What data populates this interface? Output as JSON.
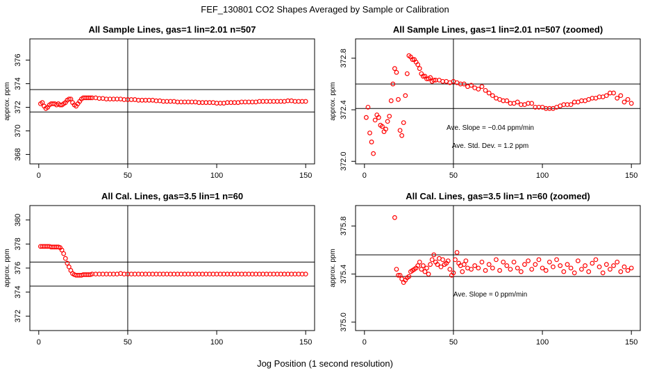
{
  "page": {
    "title": "FEF_130801  CO2 Shapes Averaged by Sample or Calibration",
    "xlabel": "Jog Position (1 second resolution)"
  },
  "colors": {
    "points": "#ff0000",
    "axes": "#000000",
    "background": "#ffffff"
  },
  "chart_data": [
    {
      "type": "scatter",
      "title": "All Sample Lines, gas=1 lin=2.01 n=507",
      "ylabel": "approx. ppm",
      "xlim": [
        -5,
        155
      ],
      "ylim": [
        367.2,
        377.8
      ],
      "xticks": [
        0,
        50,
        100,
        150
      ],
      "yticks": [
        368,
        370,
        372,
        374,
        376
      ],
      "vline": 50,
      "hlines": [
        373.5,
        371.6
      ],
      "series": [
        {
          "x": [
            1,
            2,
            3,
            4,
            5,
            6,
            7,
            8,
            9,
            10,
            11,
            12,
            13,
            14,
            15,
            16,
            17,
            18,
            19,
            20,
            21,
            22,
            23,
            24,
            25,
            26,
            27,
            28,
            29,
            30,
            32,
            34,
            36,
            38,
            40,
            42,
            44,
            46,
            48,
            50,
            52,
            54,
            56,
            58,
            60,
            62,
            64,
            66,
            68,
            70,
            72,
            74,
            76,
            78,
            80,
            82,
            84,
            86,
            88,
            90,
            92,
            94,
            96,
            98,
            100,
            102,
            104,
            106,
            108,
            110,
            112,
            114,
            116,
            118,
            120,
            122,
            124,
            126,
            128,
            130,
            132,
            134,
            136,
            138,
            140,
            142,
            144,
            146,
            148,
            150
          ],
          "y": [
            372.3,
            372.4,
            372.1,
            371.9,
            372.0,
            372.2,
            372.3,
            372.3,
            372.3,
            372.2,
            372.3,
            372.2,
            372.2,
            372.3,
            372.4,
            372.6,
            372.7,
            372.7,
            372.4,
            372.2,
            372.1,
            372.3,
            372.5,
            372.7,
            372.8,
            372.8,
            372.8,
            372.8,
            372.8,
            372.8,
            372.8,
            372.75,
            372.75,
            372.7,
            372.7,
            372.7,
            372.7,
            372.7,
            372.65,
            372.65,
            372.65,
            372.65,
            372.6,
            372.6,
            372.6,
            372.6,
            372.6,
            372.55,
            372.55,
            372.5,
            372.5,
            372.5,
            372.5,
            372.45,
            372.45,
            372.45,
            372.45,
            372.45,
            372.45,
            372.4,
            372.4,
            372.4,
            372.4,
            372.4,
            372.35,
            372.35,
            372.35,
            372.4,
            372.4,
            372.4,
            372.4,
            372.45,
            372.45,
            372.45,
            372.45,
            372.45,
            372.5,
            372.5,
            372.5,
            372.5,
            372.5,
            372.5,
            372.5,
            372.5,
            372.55,
            372.55,
            372.5,
            372.5,
            372.5,
            372.5
          ]
        }
      ]
    },
    {
      "type": "scatter",
      "title": "All Sample Lines, gas=1 lin=2.01 n=507 (zoomed)",
      "ylabel": "approx. ppm",
      "xlim": [
        -5,
        155
      ],
      "ylim": [
        371.98,
        372.95
      ],
      "xticks": [
        0,
        50,
        100,
        150
      ],
      "yticks": [
        372.0,
        372.4,
        372.8
      ],
      "vline": 50,
      "hlines": [
        372.6,
        372.41
      ],
      "annotations": [
        "Ave. Slope =  −0.04  ppm/min",
        "Ave. Std. Dev. =  1.2  ppm"
      ],
      "series": [
        {
          "x": [
            1,
            2,
            3,
            4,
            5,
            6,
            7,
            8,
            9,
            10,
            11,
            12,
            13,
            14,
            15,
            16,
            17,
            18,
            19,
            20,
            21,
            22,
            23,
            24,
            25,
            26,
            27,
            28,
            29,
            30,
            31,
            32,
            33,
            34,
            35,
            36,
            37,
            38,
            39,
            40,
            42,
            44,
            46,
            48,
            50,
            52,
            54,
            56,
            58,
            60,
            62,
            64,
            66,
            68,
            70,
            72,
            74,
            76,
            78,
            80,
            82,
            84,
            86,
            88,
            90,
            92,
            94,
            96,
            98,
            100,
            102,
            104,
            106,
            108,
            110,
            112,
            114,
            116,
            118,
            120,
            122,
            124,
            126,
            128,
            130,
            132,
            134,
            136,
            138,
            140,
            142,
            144,
            146,
            148,
            150
          ],
          "y": [
            372.34,
            372.42,
            372.22,
            372.15,
            372.06,
            372.32,
            372.36,
            372.34,
            372.28,
            372.27,
            372.23,
            372.25,
            372.31,
            372.35,
            372.47,
            372.6,
            372.72,
            372.69,
            372.48,
            372.24,
            372.2,
            372.3,
            372.51,
            372.68,
            372.82,
            372.81,
            372.79,
            372.79,
            372.77,
            372.75,
            372.72,
            372.68,
            372.66,
            372.66,
            372.64,
            372.64,
            372.65,
            372.62,
            372.63,
            372.63,
            372.63,
            372.62,
            372.62,
            372.61,
            372.62,
            372.61,
            372.6,
            372.6,
            372.58,
            372.59,
            372.57,
            372.56,
            372.58,
            372.55,
            372.53,
            372.51,
            372.49,
            372.48,
            372.47,
            372.47,
            372.45,
            372.45,
            372.46,
            372.44,
            372.44,
            372.45,
            372.45,
            372.42,
            372.42,
            372.42,
            372.41,
            372.41,
            372.41,
            372.42,
            372.43,
            372.44,
            372.44,
            372.44,
            372.46,
            372.46,
            372.47,
            372.47,
            372.48,
            372.49,
            372.49,
            372.5,
            372.5,
            372.51,
            372.53,
            372.53,
            372.49,
            372.51,
            372.46,
            372.48,
            372.45
          ]
        }
      ]
    },
    {
      "type": "scatter",
      "title": "All Cal. Lines, gas=3.5 lin=1 n=60",
      "ylabel": "approx. ppm",
      "xlim": [
        -5,
        155
      ],
      "ylim": [
        370.8,
        381.2
      ],
      "xticks": [
        0,
        50,
        100,
        150
      ],
      "yticks": [
        372,
        374,
        376,
        378,
        380
      ],
      "vline": 50,
      "hlines": [
        376.5,
        374.5
      ],
      "series": [
        {
          "x": [
            1,
            2,
            3,
            4,
            5,
            6,
            7,
            8,
            9,
            10,
            11,
            12,
            13,
            14,
            15,
            16,
            17,
            18,
            19,
            20,
            21,
            22,
            23,
            24,
            25,
            26,
            27,
            28,
            29,
            30,
            32,
            34,
            36,
            38,
            40,
            42,
            44,
            46,
            48,
            50,
            52,
            54,
            56,
            58,
            60,
            62,
            64,
            66,
            68,
            70,
            72,
            74,
            76,
            78,
            80,
            82,
            84,
            86,
            88,
            90,
            92,
            94,
            96,
            98,
            100,
            102,
            104,
            106,
            108,
            110,
            112,
            114,
            116,
            118,
            120,
            122,
            124,
            126,
            128,
            130,
            132,
            134,
            136,
            138,
            140,
            142,
            144,
            146,
            148,
            150
          ],
          "y": [
            377.8,
            377.8,
            377.8,
            377.8,
            377.8,
            377.8,
            377.75,
            377.75,
            377.75,
            377.75,
            377.75,
            377.7,
            377.5,
            377.2,
            376.8,
            376.4,
            376.1,
            375.8,
            375.55,
            375.45,
            375.4,
            375.4,
            375.4,
            375.4,
            375.45,
            375.45,
            375.45,
            375.45,
            375.45,
            375.5,
            375.5,
            375.5,
            375.5,
            375.5,
            375.5,
            375.5,
            375.5,
            375.55,
            375.5,
            375.5,
            375.5,
            375.5,
            375.5,
            375.5,
            375.5,
            375.5,
            375.5,
            375.5,
            375.5,
            375.5,
            375.5,
            375.5,
            375.5,
            375.5,
            375.5,
            375.5,
            375.5,
            375.5,
            375.5,
            375.5,
            375.5,
            375.5,
            375.5,
            375.5,
            375.5,
            375.5,
            375.5,
            375.5,
            375.5,
            375.5,
            375.5,
            375.5,
            375.5,
            375.5,
            375.5,
            375.5,
            375.5,
            375.5,
            375.5,
            375.5,
            375.5,
            375.5,
            375.5,
            375.5,
            375.5,
            375.5,
            375.5,
            375.5,
            375.5,
            375.5
          ]
        }
      ]
    },
    {
      "type": "scatter",
      "title": "All Cal. Lines, gas=3.5 lin=1 n=60 (zoomed)",
      "ylabel": "approx. ppm",
      "xlim": [
        -5,
        155
      ],
      "ylim": [
        374.93,
        375.97
      ],
      "xticks": [
        0,
        50,
        100,
        150
      ],
      "yticks": [
        375.0,
        375.4,
        375.8
      ],
      "vline": 50,
      "hlines": [
        375.56,
        375.38
      ],
      "annotations": [
        "Ave. Slope =  0  ppm/min"
      ],
      "series": [
        {
          "x": [
            17,
            18,
            19,
            20,
            21,
            22,
            23,
            24,
            25,
            26,
            27,
            28,
            29,
            30,
            31,
            32,
            33,
            34,
            35,
            36,
            37,
            38,
            39,
            40,
            41,
            42,
            43,
            44,
            45,
            46,
            47,
            48,
            49,
            50,
            51,
            52,
            53,
            54,
            55,
            56,
            57,
            58,
            60,
            62,
            64,
            66,
            68,
            70,
            72,
            74,
            76,
            78,
            80,
            82,
            84,
            86,
            88,
            90,
            92,
            94,
            96,
            98,
            100,
            102,
            104,
            106,
            108,
            110,
            112,
            114,
            116,
            118,
            120,
            122,
            124,
            126,
            128,
            130,
            132,
            134,
            136,
            138,
            140,
            142,
            144,
            146,
            148,
            150
          ],
          "y": [
            375.87,
            375.44,
            375.39,
            375.39,
            375.36,
            375.33,
            375.35,
            375.37,
            375.38,
            375.42,
            375.43,
            375.44,
            375.45,
            375.47,
            375.5,
            375.44,
            375.47,
            375.42,
            375.45,
            375.4,
            375.48,
            375.52,
            375.56,
            375.5,
            375.48,
            375.53,
            375.46,
            375.52,
            375.48,
            375.49,
            375.51,
            375.44,
            375.39,
            375.41,
            375.52,
            375.58,
            375.49,
            375.47,
            375.42,
            375.48,
            375.51,
            375.45,
            375.44,
            375.47,
            375.45,
            375.5,
            375.43,
            375.48,
            375.45,
            375.52,
            375.43,
            375.5,
            375.47,
            375.44,
            375.5,
            375.45,
            375.42,
            375.48,
            375.51,
            375.44,
            375.48,
            375.52,
            375.45,
            375.43,
            375.5,
            375.46,
            375.52,
            375.47,
            375.42,
            375.48,
            375.45,
            375.41,
            375.51,
            375.44,
            375.47,
            375.42,
            375.49,
            375.52,
            375.46,
            375.41,
            375.48,
            375.44,
            375.47,
            375.5,
            375.42,
            375.46,
            375.43,
            375.45
          ]
        }
      ]
    }
  ]
}
